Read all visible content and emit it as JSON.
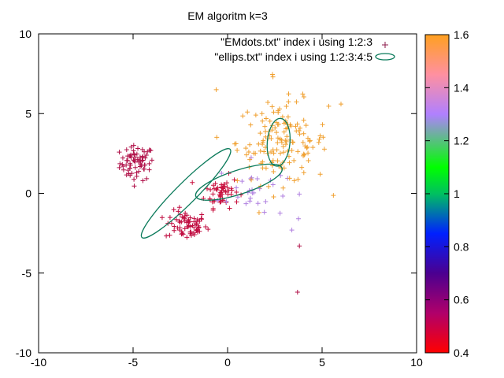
{
  "chart_data": {
    "type": "scatter",
    "title": "EM algoritm k=3",
    "xlabel": "",
    "ylabel": "",
    "xlim": [
      -10,
      10
    ],
    "ylim": [
      -10,
      10
    ],
    "x_ticks": [
      -10,
      -5,
      0,
      5,
      10
    ],
    "y_ticks": [
      -10,
      -5,
      0,
      5,
      10
    ],
    "legend_position": "top-right",
    "legend": [
      {
        "label": "\"EMdots.txt\" index i using 1:2:3",
        "marker": "plus",
        "color": "#8b1a4a"
      },
      {
        "label": "\"ellips.txt\" index i using 1:2:3:4:5",
        "marker": "ellipse",
        "color": "#0a7a5a"
      }
    ],
    "colorbar": {
      "range": [
        0.4,
        1.6
      ],
      "ticks": [
        0.4,
        0.6,
        0.8,
        1,
        1.2,
        1.4,
        1.6
      ],
      "tick_labels": [
        "0.4",
        "0.6",
        "0.8",
        "1",
        "1.2",
        "1.4",
        "1.6"
      ],
      "palette": [
        {
          "value": 0.4,
          "color": "#ff0000"
        },
        {
          "value": 0.55,
          "color": "#b0006a"
        },
        {
          "value": 0.7,
          "color": "#4b0090"
        },
        {
          "value": 0.85,
          "color": "#0020ff"
        },
        {
          "value": 1.0,
          "color": "#00c060"
        },
        {
          "value": 1.1,
          "color": "#00ff00"
        },
        {
          "value": 1.3,
          "color": "#b080ff"
        },
        {
          "value": 1.45,
          "color": "#ff90a0"
        },
        {
          "value": 1.6,
          "color": "#ffa020"
        }
      ]
    },
    "clusters": [
      {
        "cx": -4.8,
        "cy": 1.9,
        "sx": 0.45,
        "sy": 0.55,
        "n": 70,
        "color": "#b01048"
      },
      {
        "cx": -2.2,
        "cy": -2.0,
        "sx": 0.55,
        "sy": 0.45,
        "n": 70,
        "color": "#c00c40"
      },
      {
        "cx": -0.3,
        "cy": 0.1,
        "sx": 0.45,
        "sy": 0.5,
        "n": 55,
        "color": "#c8103e"
      },
      {
        "cx": 1.3,
        "cy": 0.2,
        "sx": 0.9,
        "sy": 0.9,
        "n": 30,
        "color": "#b080e0"
      },
      {
        "cx": 2.9,
        "cy": 3.2,
        "sx": 1.2,
        "sy": 1.3,
        "n": 150,
        "color": "#f0a030"
      }
    ],
    "outliers": [
      {
        "x": 2.4,
        "y": 7.3,
        "color": "#f0a030"
      },
      {
        "x": -0.6,
        "y": 6.5,
        "color": "#f0a030"
      },
      {
        "x": 6.0,
        "y": 5.6,
        "color": "#f0a030"
      },
      {
        "x": 3.8,
        "y": -3.3,
        "color": "#b01048"
      },
      {
        "x": 3.7,
        "y": -6.2,
        "color": "#b01048"
      },
      {
        "x": 3.4,
        "y": -2.3,
        "color": "#b080e0"
      },
      {
        "x": 4.9,
        "y": 1.2,
        "color": "#f0a030"
      },
      {
        "x": -5.1,
        "y": 2.9,
        "color": "#b01048"
      }
    ],
    "ellipses": [
      {
        "cx": -2.2,
        "cy": 0.0,
        "rx": 3.3,
        "ry": 0.65,
        "angle": -45
      },
      {
        "cx": 0.6,
        "cy": 0.7,
        "rx": 2.4,
        "ry": 0.75,
        "angle": -18
      },
      {
        "cx": 2.7,
        "cy": 3.2,
        "rx": 0.6,
        "ry": 1.5,
        "angle": 5
      }
    ]
  }
}
